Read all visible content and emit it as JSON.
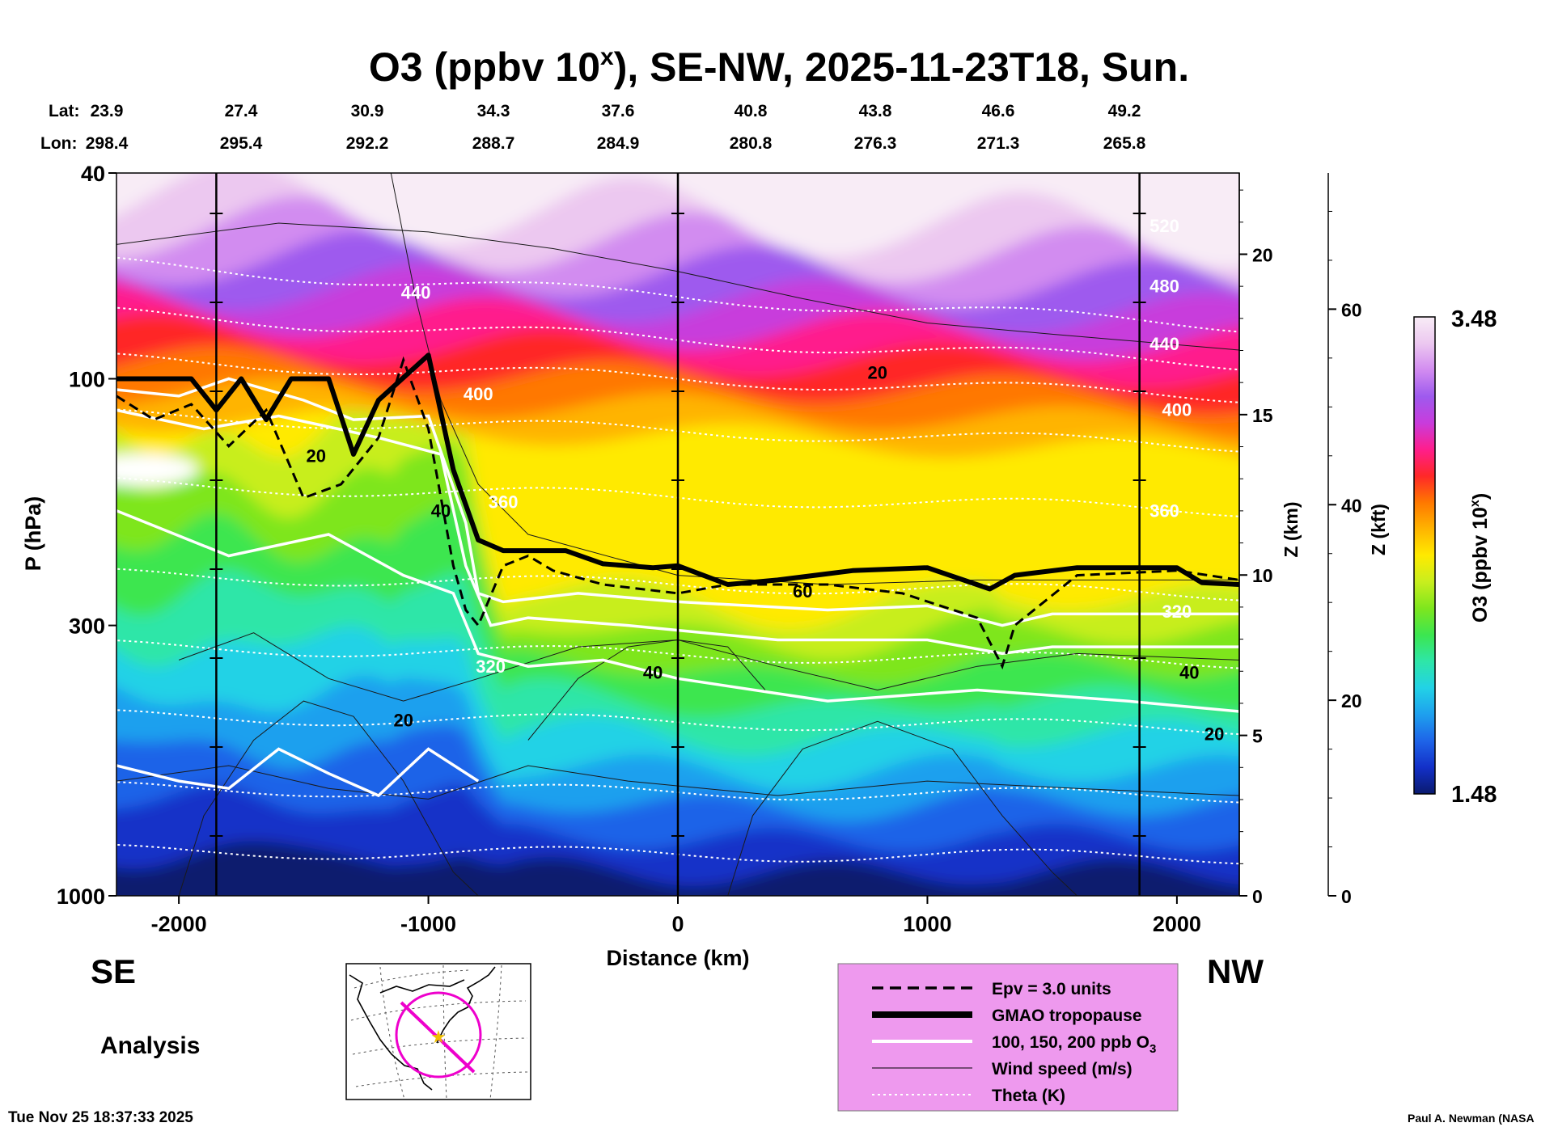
{
  "chart_data": {
    "type": "heatmap",
    "title": "O3 (ppbv 10",
    "title_sup": "x",
    "title_rest": "), SE-NW, 2025-11-23T18, Sun.",
    "xlabel": "Distance (km)",
    "ylabel": "P (hPa)",
    "right_axis_1_label": "Z (km)",
    "right_axis_2_label": "Z (kft)",
    "x_range": [
      -2250,
      2250
    ],
    "y_scale": "log",
    "y_range": [
      1000,
      40
    ],
    "x_ticks": [
      -2000,
      -1000,
      0,
      1000,
      2000
    ],
    "x_tick_labels": [
      "-2000",
      "-1000",
      "0",
      "1000",
      "2000"
    ],
    "y_ticks": [
      40,
      100,
      300,
      1000
    ],
    "y_tick_labels": [
      "40",
      "100",
      "300",
      "1000"
    ],
    "z_km_ticks": [
      0,
      5,
      10,
      15,
      20
    ],
    "z_km_labels": [
      "0",
      "5",
      "10",
      "15",
      "20"
    ],
    "z_kft_ticks": [
      0,
      20,
      40,
      60
    ],
    "z_kft_labels": [
      "0",
      "20",
      "40",
      "60"
    ],
    "lat_label": "Lat:",
    "lon_label": "Lon:",
    "lat_values": [
      "23.9",
      "27.4",
      "30.9",
      "34.3",
      "37.6",
      "40.8",
      "43.8",
      "46.6",
      "49.2"
    ],
    "lon_values": [
      "298.4",
      "295.4",
      "292.2",
      "288.7",
      "284.9",
      "280.8",
      "276.3",
      "271.3",
      "265.8"
    ],
    "direction_left": "SE",
    "direction_right": "NW",
    "colorbar_label": "O3 (ppbv 10",
    "colorbar_label_sup": "x",
    "colorbar_label_rest": ")",
    "colorbar_max": "3.48",
    "colorbar_min": "1.48",
    "colorbar_range": [
      1.48,
      3.48
    ],
    "colors": [
      "#0a1a6e",
      "#1330c8",
      "#1e64e8",
      "#1ea0ee",
      "#22d2e6",
      "#2ee6a8",
      "#3ce650",
      "#7ee61e",
      "#c8ee1e",
      "#ffea00",
      "#ffb400",
      "#ff7800",
      "#ff2828",
      "#ff1e8c",
      "#c83cdc",
      "#9e5aee",
      "#d28cf0",
      "#ecc8f0",
      "#f8ecf6"
    ],
    "theta_labels": [
      "520",
      "480",
      "440",
      "440",
      "400",
      "400",
      "360",
      "360",
      "320",
      "320"
    ],
    "wind_labels": [
      "20",
      "20",
      "40",
      "40",
      "60",
      "40",
      "20",
      "20"
    ],
    "legend": [
      {
        "label": "Epv = 3.0 units",
        "style": "dashed"
      },
      {
        "label": "GMAO tropopause",
        "style": "thick"
      },
      {
        "label": "100, 150, 200 ppb O",
        "sub": "3",
        "style": "white"
      },
      {
        "label": "Wind speed (m/s)",
        "style": "thin"
      },
      {
        "label": "Theta (K)",
        "style": "dotted"
      }
    ],
    "legend_bg": "#ee99ee",
    "analysis_label": "Analysis",
    "timestamp": "Tue Nov 25 18:37:33 2025",
    "credit": "Paul A. Newman (NASA"
  }
}
